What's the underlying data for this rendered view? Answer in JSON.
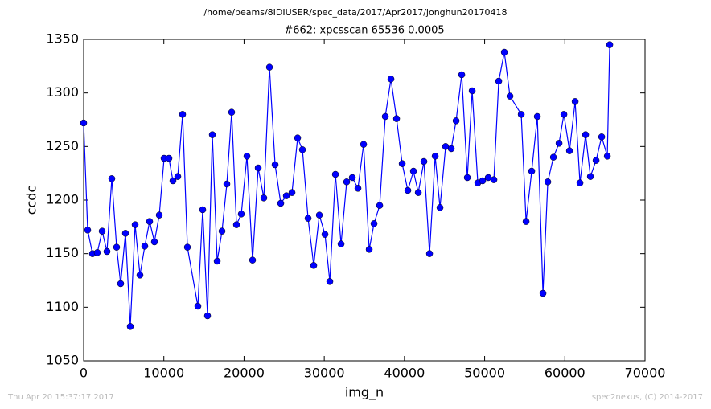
{
  "chart_data": {
    "type": "line",
    "suptitle": "/home/beams/8IDIUSER/spec_data/2017/Apr2017/jonghun20170418",
    "title": "#662: xpcsscan 65536 0.0005",
    "xlabel": "img_n",
    "ylabel": "ccdc",
    "footer_left": "Thu Apr 20 15:37:17 2017",
    "footer_right": "spec2nexus, (C) 2014-2017",
    "xlim": [
      0,
      70000
    ],
    "xticks": [
      0,
      10000,
      20000,
      30000,
      40000,
      50000,
      60000,
      70000
    ],
    "ylim": [
      1050,
      1350
    ],
    "yticks": [
      1050,
      1100,
      1150,
      1200,
      1250,
      1300,
      1350
    ],
    "grid": false,
    "x": [
      0,
      502,
      1103,
      1705,
      2307,
      2909,
      3510,
      4112,
      4614,
      5216,
      5817,
      6419,
      7021,
      7623,
      8225,
      8826,
      9428,
      10030,
      10632,
      11133,
      11735,
      12337,
      12939,
      14243,
      14844,
      15446,
      16048,
      16650,
      17252,
      17853,
      18455,
      19057,
      19659,
      20361,
      21063,
      21765,
      22467,
      23169,
      23871,
      24574,
      25276,
      25978,
      26680,
      27282,
      27984,
      28686,
      29388,
      30090,
      30692,
      31394,
      32096,
      32798,
      33500,
      34202,
      34904,
      35607,
      36208,
      36910,
      37613,
      38315,
      39017,
      39719,
      40421,
      41123,
      41725,
      42427,
      43129,
      43831,
      44433,
      45135,
      45837,
      46439,
      47141,
      47843,
      48445,
      49147,
      49749,
      50451,
      51153,
      51755,
      52457,
      53159,
      54563,
      55165,
      55867,
      56569,
      57271,
      57873,
      58575,
      59277,
      59879,
      60581,
      61283,
      61885,
      62587,
      63189,
      63891,
      64593,
      65295,
      65596
    ],
    "series": [
      {
        "color": "#0000ff",
        "values": [
          1272,
          1172,
          1150,
          1151,
          1171,
          1152,
          1220,
          1156,
          1122,
          1169,
          1082,
          1177,
          1130,
          1157,
          1180,
          1161,
          1186,
          1239,
          1239,
          1218,
          1222,
          1280,
          1156,
          1101,
          1191,
          1092,
          1261,
          1143,
          1171,
          1215,
          1282,
          1177,
          1187,
          1241,
          1144,
          1230,
          1202,
          1324,
          1233,
          1197,
          1204,
          1207,
          1258,
          1247,
          1183,
          1139,
          1186,
          1168,
          1124,
          1224,
          1159,
          1217,
          1221,
          1211,
          1252,
          1154,
          1178,
          1195,
          1278,
          1313,
          1276,
          1234,
          1209,
          1227,
          1207,
          1236,
          1150,
          1241,
          1193,
          1250,
          1248,
          1274,
          1317,
          1221,
          1302,
          1216,
          1218,
          1221,
          1219,
          1311,
          1338,
          1297,
          1280,
          1180,
          1227,
          1278,
          1113,
          1217,
          1240,
          1253,
          1280,
          1246,
          1292,
          1216,
          1261,
          1222,
          1237,
          1259,
          1241,
          1345
        ]
      }
    ]
  }
}
